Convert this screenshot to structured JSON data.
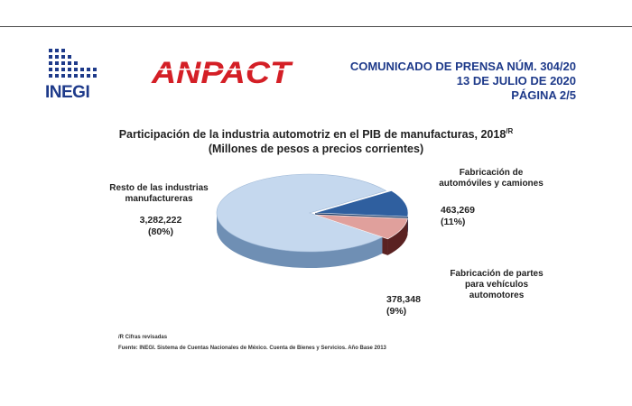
{
  "header": {
    "press_release": "COMUNICADO DE PRENSA NÚM. 304/20",
    "date": "13 DE JULIO DE 2020",
    "page": "PÁGINA 2/5"
  },
  "logos": {
    "inegi": "INEGI",
    "anpact": "ANPACT"
  },
  "chart_data": {
    "type": "pie",
    "title": "Participación de la industria automotriz en el PIB de manufacturas, 2018",
    "title_superscript": "/R",
    "subtitle": "(Millones de pesos a precios corrientes)",
    "slices": [
      {
        "name": "Resto de las industrias manufactureras",
        "label_line1": "Resto de las industrias",
        "label_line2": "manufactureras",
        "label_line3": "",
        "value": 3282222,
        "value_text": "3,282,222",
        "percent": 80,
        "percent_text": "(80%)",
        "color": "#c5d8ee",
        "side_color": "#6f8fb4"
      },
      {
        "name": "Fabricación de automóviles y camiones",
        "label_line1": "Fabricación de",
        "label_line2": "automóviles y camiones",
        "label_line3": "",
        "value": 463269,
        "value_text": "463,269",
        "percent": 11,
        "percent_text": "(11%)",
        "color": "#2f5f9f",
        "side_color": "#1c3a66"
      },
      {
        "name": "Fabricación de partes para vehículos automotores",
        "label_line1": "Fabricación de partes",
        "label_line2": "para vehículos",
        "label_line3": "automotores",
        "value": 378348,
        "value_text": "378,348",
        "percent": 9,
        "percent_text": "(9%)",
        "color": "#e0a09c",
        "side_color": "#5a2222"
      }
    ],
    "legend": "none"
  },
  "footnotes": {
    "revised": "/R Cifras revisadas",
    "source": "Fuente: INEGI. Sistema de Cuentas Nacionales de México. Cuenta de Bienes y Servicios. Año Base 2013"
  }
}
